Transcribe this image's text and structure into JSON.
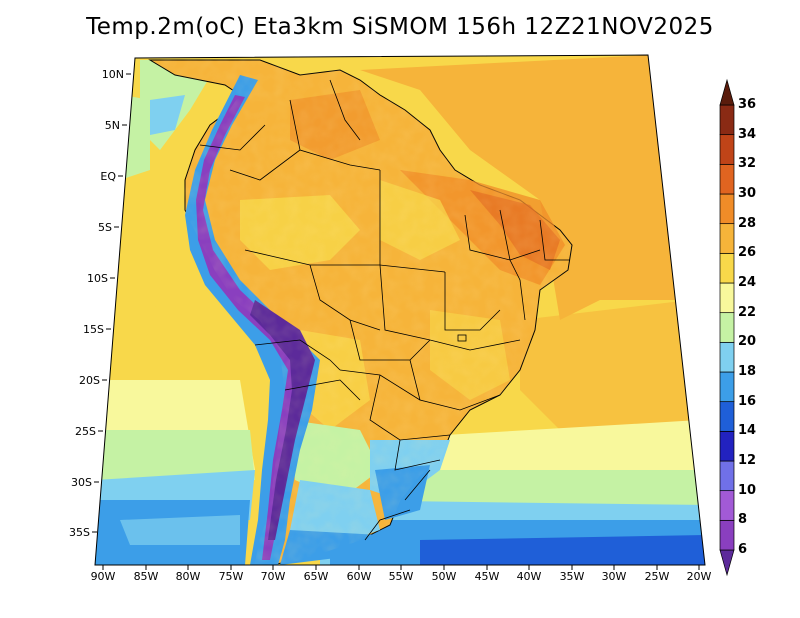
{
  "title": "Temp.2m(oC) Eta3km SiSMOM 156h 12Z21NOV2025",
  "map": {
    "lat_ticks": [
      "10N",
      "5N",
      "EQ",
      "5S",
      "10S",
      "15S",
      "20S",
      "25S",
      "30S",
      "35S"
    ],
    "lon_ticks": [
      "90W",
      "85W",
      "80W",
      "75W",
      "70W",
      "65W",
      "60W",
      "55W",
      "50W",
      "45W",
      "40W",
      "35W",
      "30W",
      "25W",
      "20W"
    ]
  },
  "colorbar": {
    "levels": [
      "6",
      "8",
      "10",
      "12",
      "14",
      "16",
      "18",
      "20",
      "22",
      "24",
      "26",
      "28",
      "30",
      "32",
      "34",
      "36"
    ],
    "colors": [
      "#5c2a9a",
      "#8a3fbf",
      "#a25ad6",
      "#7070e8",
      "#2222c0",
      "#1f5fd8",
      "#3c9ee8",
      "#7fd0f0",
      "#c5f2a4",
      "#f8f89c",
      "#f8d84a",
      "#f6b43a",
      "#f08c28",
      "#e06420",
      "#c04418",
      "#8a2a14",
      "#5a1c0c"
    ]
  }
}
